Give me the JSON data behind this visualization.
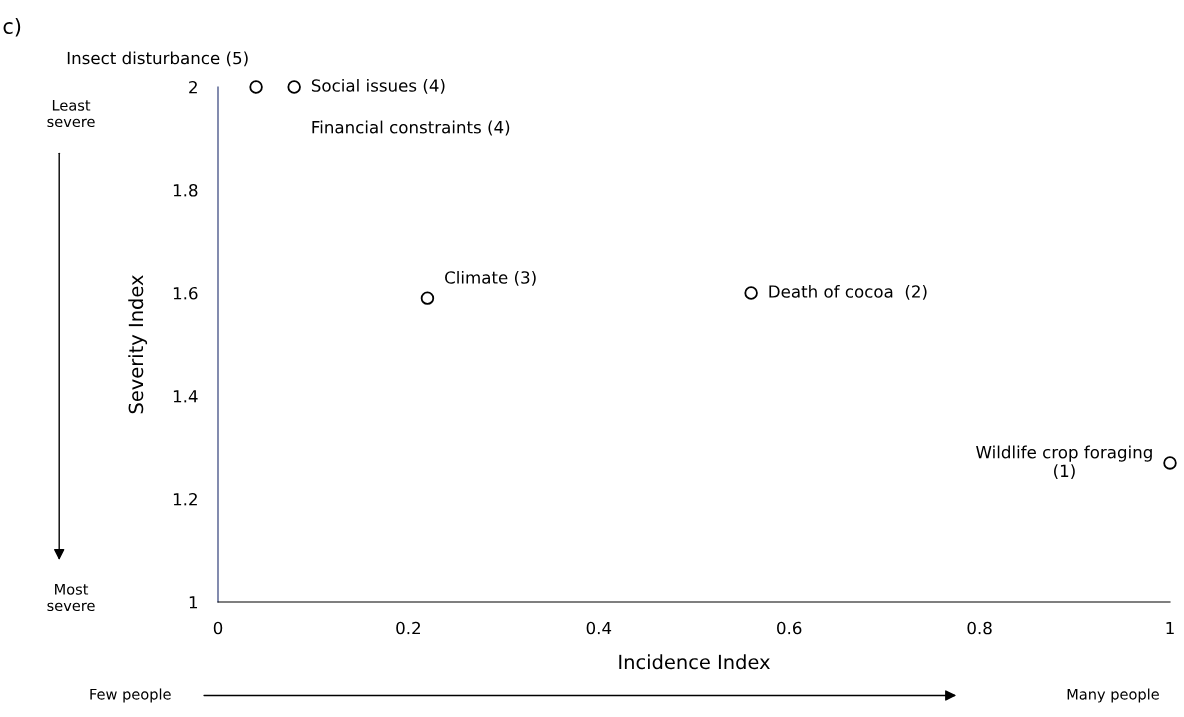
{
  "chart_data": {
    "type": "scatter",
    "xlabel": "Incidence Index",
    "ylabel": "Severity Index",
    "x": [
      0.04,
      0.08,
      0.22,
      0.56,
      1.0
    ],
    "series": [
      {
        "color": "#000000",
        "values": [
          2,
          2,
          1.59,
          1.6,
          1.27
        ]
      }
    ],
    "marker": "circle",
    "grid": false,
    "legend": false,
    "xlim": [
      0,
      1
    ],
    "xticks": [
      0,
      0.2,
      0.4,
      0.6,
      0.8,
      1
    ],
    "ylim": [
      1,
      2
    ],
    "yticks": [
      1,
      1.2,
      1.4,
      1.6,
      1.8,
      2
    ],
    "annotations": [
      {
        "text": "Insect disturbance (5)",
        "x": 0.04,
        "y": 2
      },
      {
        "text": "Social issues (4)",
        "x": 0.08,
        "y": 2
      },
      {
        "text": "Financial constraints (4)",
        "x": 0.08,
        "y": 2
      },
      {
        "text": "Climate (3)",
        "x": 0.22,
        "y": 1.59
      },
      {
        "text": "Death of cocoa  (2)",
        "x": 0.56,
        "y": 1.6
      },
      {
        "text": "Wildlife crop foraging\n(1)",
        "x": 1.0,
        "y": 1.27
      },
      "c)",
      "Least\nsevere",
      "Most\nsevere",
      "Few people",
      "Many people"
    ]
  }
}
